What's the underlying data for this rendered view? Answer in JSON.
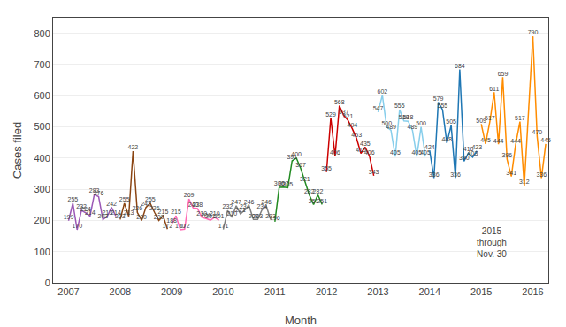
{
  "chart_data": {
    "type": "line",
    "xlabel": "Month",
    "ylabel": "Cases filed",
    "xlim": [
      2006.7,
      2016.3
    ],
    "xticks": [
      2007,
      2008,
      2009,
      2010,
      2011,
      2012,
      2013,
      2014,
      2015,
      2016
    ],
    "ylim": [
      0,
      850
    ],
    "yticks": [
      0,
      100,
      200,
      300,
      400,
      500,
      600,
      700,
      800
    ],
    "grid": true,
    "data_labels": true,
    "annotations": [
      {
        "text": "2015\nthrough\nNov. 30",
        "x": 2015.2,
        "y": 130
      }
    ],
    "series": [
      {
        "color": "#9B59B6",
        "x": [
          2007,
          2007.0833333333333,
          2007.1666666666667,
          2007.25,
          2007.3333333333333,
          2007.4166666666667,
          2007.5,
          2007.5833333333333,
          2007.6666666666667,
          2007.75,
          2007.8333333333333,
          2007.9166666666667
        ],
        "values": [
          199,
          255,
          170,
          232,
          224,
          214,
          283,
          276,
          203,
          213,
          242,
          214
        ]
      },
      {
        "color": "#8B4513",
        "x": [
          2008,
          2008.0833333333333,
          2008.1666666666667,
          2008.25,
          2008.3333333333333,
          2008.4166666666667,
          2008.5,
          2008.5833333333333,
          2008.6666666666667,
          2008.75,
          2008.8333333333333,
          2008.9166666666667
        ],
        "values": [
          203,
          255,
          213,
          422,
          226,
          200,
          242,
          255,
          226,
          200,
          215,
          172
        ]
      },
      {
        "color": "#FF69B4",
        "x": [
          2009,
          2009.0833333333333,
          2009.1666666666667,
          2009.25,
          2009.3333333333333,
          2009.4166666666667,
          2009.5,
          2009.5833333333333,
          2009.6666666666667,
          2009.75,
          2009.8333333333333,
          2009.9166666666667
        ],
        "values": [
          188,
          215,
          170,
          172,
          269,
          240,
          238,
          210,
          206,
          201,
          210,
          201
        ]
      },
      {
        "color": "#808080",
        "x": [
          2010,
          2010.0833333333333,
          2010.1666666666667,
          2010.25,
          2010.3333333333333,
          2010.4166666666667,
          2010.5,
          2010.5833333333333,
          2010.6666666666667,
          2010.75,
          2010.8333333333333,
          2010.9166666666667
        ],
        "values": [
          171,
          232,
          210,
          247,
          221,
          234,
          246,
          203,
          203,
          234,
          246,
          203
        ]
      },
      {
        "color": "#228B22",
        "x": [
          2011,
          2011.0833333333333,
          2011.1666666666667,
          2011.25,
          2011.3333333333333,
          2011.4166666666667,
          2011.5,
          2011.5833333333333,
          2011.6666666666667,
          2011.75,
          2011.8333333333333,
          2011.9166666666667
        ],
        "values": [
          196,
          306,
          307,
          305,
          391,
          400,
          367,
          321,
          282,
          251,
          282,
          251
        ]
      },
      {
        "color": "#CC0000",
        "x": [
          2012,
          2012.0833333333333,
          2012.1666666666667,
          2012.25,
          2012.3333333333333,
          2012.4166666666667,
          2012.5,
          2012.5833333333333,
          2012.6666666666667,
          2012.75,
          2012.8333333333333,
          2012.9166666666667
        ],
        "values": [
          355,
          529,
          406,
          568,
          537,
          521,
          494,
          463,
          415,
          435,
          406,
          343
        ]
      },
      {
        "color": "#87CEEB",
        "x": [
          2013,
          2013.0833333333333,
          2013.1666666666667,
          2013.25,
          2013.3333333333333,
          2013.4166666666667,
          2013.5,
          2013.5833333333333,
          2013.6666666666667,
          2013.75,
          2013.8333333333333,
          2013.9166666666667
        ],
        "values": [
          547,
          602,
          500,
          489,
          405,
          555,
          519,
          518,
          489,
          405,
          500,
          405
        ]
      },
      {
        "color": "#1F77B4",
        "x": [
          2014,
          2014.0833333333333,
          2014.1666666666667,
          2014.25,
          2014.3333333333333,
          2014.4166666666667,
          2014.5,
          2014.5833333333333,
          2014.6666666666667,
          2014.75,
          2014.8333333333333,
          2014.9166666666667
        ],
        "values": [
          424,
          336,
          579,
          555,
          448,
          505,
          336,
          684,
          390,
          416,
          403,
          423
        ]
      },
      {
        "color": "#FF8C00",
        "x": [
          2015,
          2015.0833333333333,
          2015.1666666666667,
          2015.25,
          2015.3333333333333,
          2015.4166666666667,
          2015.5,
          2015.5833333333333,
          2015.6666666666667,
          2015.75,
          2015.8333333333333
        ],
        "values": [
          509,
          445,
          517,
          611,
          444,
          659,
          396,
          341,
          444,
          517,
          312
        ]
      },
      {
        "color": "#FF8C00",
        "x": [
          2016,
          2016.0833333333333,
          2016.1666666666667,
          2016.25
        ],
        "values": [
          790,
          470,
          336,
          445
        ]
      },
      {
        "color": "#FF8C00",
        "data_labels": false,
        "x": [
          2015.8333333333333,
          2016
        ],
        "values": [
          312,
          790
        ]
      }
    ]
  }
}
